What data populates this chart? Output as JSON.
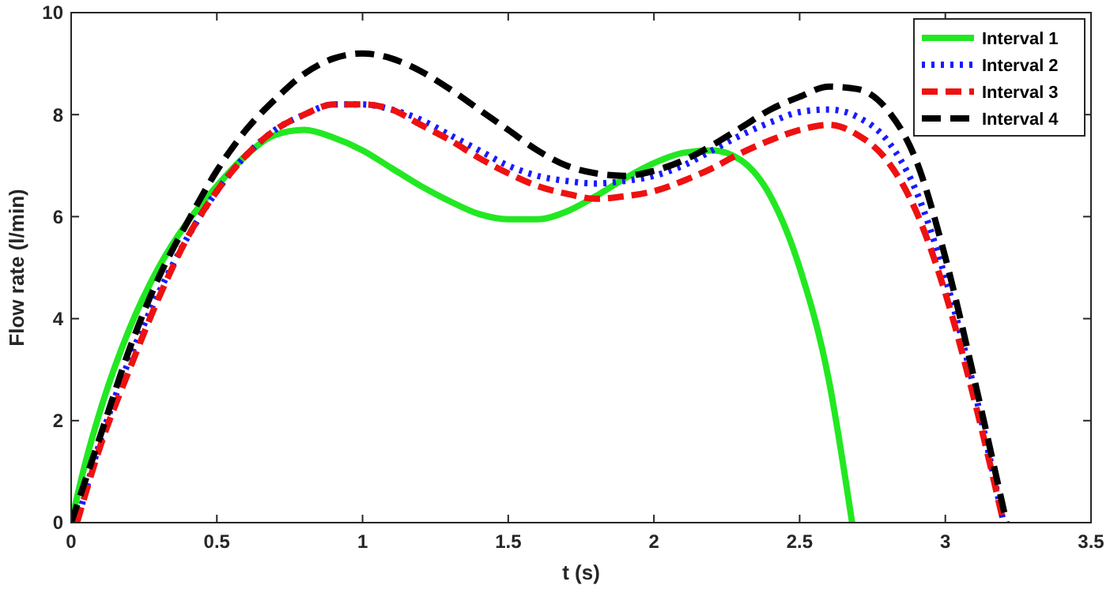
{
  "chart_data": {
    "type": "line",
    "xlabel": "t (s)",
    "ylabel": "Flow rate (l/min)",
    "xlim": [
      0,
      3.5
    ],
    "ylim": [
      0,
      10
    ],
    "xticks": [
      0,
      0.5,
      1,
      1.5,
      2,
      2.5,
      3,
      3.5
    ],
    "yticks": [
      0,
      2,
      4,
      6,
      8,
      10
    ],
    "grid": false,
    "legend": "top right",
    "marker": "none",
    "series": [
      {
        "name": "Interval 1",
        "color": "#22e822",
        "line_style": "solid",
        "x": [
          0,
          0.05,
          0.1,
          0.2,
          0.3,
          0.4,
          0.5,
          0.6,
          0.7,
          0.8,
          0.9,
          1.0,
          1.1,
          1.2,
          1.3,
          1.4,
          1.5,
          1.6,
          1.7,
          1.8,
          1.9,
          2.0,
          2.1,
          2.2,
          2.3,
          2.4,
          2.5,
          2.6,
          2.68
        ],
        "values": [
          0,
          1.2,
          2.2,
          3.8,
          5.0,
          5.9,
          6.6,
          7.2,
          7.6,
          7.7,
          7.55,
          7.3,
          6.95,
          6.6,
          6.3,
          6.05,
          5.95,
          5.95,
          6.1,
          6.4,
          6.75,
          7.05,
          7.25,
          7.3,
          7.1,
          6.4,
          5.0,
          2.8,
          0
        ]
      },
      {
        "name": "Interval 2",
        "color": "#1a1aff",
        "line_style": "dotted",
        "x": [
          0.02,
          0.1,
          0.2,
          0.3,
          0.4,
          0.5,
          0.6,
          0.7,
          0.8,
          0.9,
          1.0,
          1.1,
          1.2,
          1.3,
          1.4,
          1.5,
          1.6,
          1.7,
          1.8,
          1.9,
          2.0,
          2.1,
          2.2,
          2.3,
          2.4,
          2.5,
          2.6,
          2.7,
          2.8,
          2.9,
          3.0,
          3.1,
          3.2
        ],
        "values": [
          0,
          1.6,
          3.2,
          4.5,
          5.6,
          6.5,
          7.2,
          7.7,
          8.0,
          8.2,
          8.2,
          8.1,
          7.9,
          7.6,
          7.3,
          7.0,
          6.8,
          6.7,
          6.65,
          6.7,
          6.8,
          7.0,
          7.3,
          7.6,
          7.85,
          8.05,
          8.1,
          7.95,
          7.5,
          6.5,
          4.8,
          2.6,
          0
        ]
      },
      {
        "name": "Interval 3",
        "color": "#ee1111",
        "line_style": "dashed",
        "x": [
          0.02,
          0.1,
          0.2,
          0.3,
          0.4,
          0.5,
          0.6,
          0.7,
          0.8,
          0.9,
          1.0,
          1.1,
          1.2,
          1.3,
          1.4,
          1.5,
          1.6,
          1.7,
          1.8,
          1.9,
          2.0,
          2.1,
          2.2,
          2.3,
          2.4,
          2.5,
          2.6,
          2.7,
          2.8,
          2.9,
          3.0,
          3.1,
          3.2
        ],
        "values": [
          0,
          1.5,
          3.0,
          4.4,
          5.6,
          6.5,
          7.2,
          7.7,
          8.0,
          8.2,
          8.2,
          8.1,
          7.8,
          7.5,
          7.15,
          6.85,
          6.6,
          6.45,
          6.35,
          6.4,
          6.5,
          6.7,
          6.95,
          7.25,
          7.5,
          7.7,
          7.8,
          7.6,
          7.1,
          6.1,
          4.5,
          2.4,
          0
        ]
      },
      {
        "name": "Interval 4",
        "color": "#000000",
        "line_style": "dashed",
        "x": [
          0,
          0.1,
          0.2,
          0.3,
          0.4,
          0.5,
          0.6,
          0.7,
          0.8,
          0.9,
          1.0,
          1.1,
          1.2,
          1.3,
          1.4,
          1.5,
          1.6,
          1.7,
          1.8,
          1.9,
          2.0,
          2.1,
          2.2,
          2.3,
          2.4,
          2.5,
          2.6,
          2.7,
          2.8,
          2.9,
          3.0,
          3.1,
          3.21
        ],
        "values": [
          0,
          1.7,
          3.4,
          4.8,
          5.9,
          6.9,
          7.7,
          8.3,
          8.8,
          9.1,
          9.2,
          9.1,
          8.85,
          8.5,
          8.1,
          7.7,
          7.3,
          7.0,
          6.85,
          6.8,
          6.9,
          7.1,
          7.4,
          7.75,
          8.1,
          8.35,
          8.55,
          8.5,
          8.1,
          7.1,
          5.2,
          2.8,
          0
        ]
      }
    ]
  }
}
